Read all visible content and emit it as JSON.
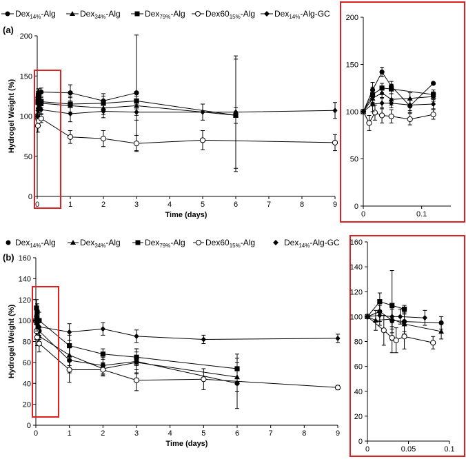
{
  "colors": {
    "highlight": "#e02020",
    "series": "#000000",
    "axis": "#000000"
  },
  "legend": [
    {
      "base": "Dex",
      "sub": "14%",
      "suffix": "-Alg",
      "marker": "circle-filled"
    },
    {
      "base": "Dex",
      "sub": "34%",
      "suffix": "-Alg",
      "marker": "triangle-filled"
    },
    {
      "base": "Dex",
      "sub": "79%",
      "suffix": "-Alg",
      "marker": "square-filled"
    },
    {
      "base": "Dex60",
      "sub": "15%",
      "suffix": "-Alg",
      "marker": "circle-open"
    },
    {
      "base": "Dex",
      "sub": "14%",
      "suffix": "-Alg-GC",
      "marker": "diamond-filled"
    }
  ],
  "chart_data": [
    {
      "id": "a-main",
      "panel_label": "(a)",
      "type": "line",
      "xlabel": "Time (days)",
      "ylabel": "Hydrogel Weight (%)",
      "xlim": [
        0,
        9
      ],
      "ylim": [
        0,
        200
      ],
      "xticks": [
        "0",
        "1",
        "2",
        "3",
        "4",
        "5",
        "6",
        "7",
        "8",
        "9"
      ],
      "yticks": [
        "0",
        "50",
        "100",
        "150",
        "200"
      ],
      "series": [
        {
          "name": "Dex14%-Alg",
          "marker": "circle-filled",
          "points": [
            [
              0,
              100,
              0
            ],
            [
              0.02,
              123,
              8
            ],
            [
              0.03,
              128,
              6
            ],
            [
              0.05,
              129,
              5
            ],
            [
              0.12,
              130,
              5
            ],
            [
              1,
              129,
              10
            ],
            [
              2,
              119,
              9
            ],
            [
              3,
              129,
              72
            ]
          ]
        },
        {
          "name": "Dex34%-Alg",
          "marker": "triangle-filled",
          "points": [
            [
              0,
              100,
              0
            ],
            [
              0.02,
              117,
              8
            ],
            [
              0.03,
              120,
              6
            ],
            [
              0.05,
              117,
              5
            ],
            [
              0.12,
              116,
              5
            ],
            [
              1,
              113,
              10
            ],
            [
              2,
              110,
              8
            ],
            [
              3,
              113,
              12
            ],
            [
              6,
              101,
              70
            ]
          ]
        },
        {
          "name": "Dex79%-Alg",
          "marker": "square-filled",
          "points": [
            [
              0,
              100,
              0
            ],
            [
              0.02,
              118,
              8
            ],
            [
              0.03,
              124,
              5
            ],
            [
              0.05,
              123,
              5
            ],
            [
              0.12,
              118,
              5
            ],
            [
              1,
              115,
              10
            ],
            [
              2,
              116,
              9
            ],
            [
              3,
              119,
              10
            ],
            [
              6,
              101,
              10
            ]
          ]
        },
        {
          "name": "Dex6015%-Alg",
          "marker": "circle-open",
          "points": [
            [
              0,
              100,
              0
            ],
            [
              0.02,
              88,
              8
            ],
            [
              0.03,
              96,
              6
            ],
            [
              0.05,
              94,
              6
            ],
            [
              0.12,
              97,
              5
            ],
            [
              1,
              74,
              8
            ],
            [
              2,
              72,
              10
            ],
            [
              3,
              66,
              10
            ],
            [
              5,
              70,
              12
            ],
            [
              9,
              67,
              10
            ]
          ]
        },
        {
          "name": "Dex14%-Alg-GC",
          "marker": "diamond-filled",
          "points": [
            [
              0,
              100,
              0
            ],
            [
              0.02,
              107,
              8
            ],
            [
              0.03,
              110,
              6
            ],
            [
              0.05,
              110,
              5
            ],
            [
              0.12,
              108,
              5
            ],
            [
              1,
              103,
              10
            ],
            [
              2,
              106,
              8
            ],
            [
              3,
              105,
              10
            ],
            [
              5,
              105,
              10
            ],
            [
              6,
              105,
              70
            ],
            [
              9,
              107,
              10
            ]
          ]
        }
      ]
    },
    {
      "id": "a-inset",
      "type": "line",
      "xlim": [
        0,
        0.15
      ],
      "ylim": [
        0,
        200
      ],
      "xticks": [
        "0",
        "0.1"
      ],
      "yticks": [
        "0",
        "50",
        "100",
        "150",
        "200"
      ],
      "series": [
        {
          "name": "Dex14%-Alg",
          "marker": "circle-filled",
          "points": [
            [
              0,
              100,
              0
            ],
            [
              0.016,
              123,
              8
            ],
            [
              0.032,
              142,
              5
            ],
            [
              0.048,
              127,
              5
            ],
            [
              0.08,
              106,
              7
            ],
            [
              0.12,
              130,
              0
            ]
          ]
        },
        {
          "name": "Dex34%-Alg",
          "marker": "triangle-filled",
          "points": [
            [
              0,
              100,
              0
            ],
            [
              0.016,
              114,
              8
            ],
            [
              0.032,
              120,
              6
            ],
            [
              0.048,
              113,
              6
            ],
            [
              0.08,
              114,
              6
            ],
            [
              0.12,
              116,
              5
            ]
          ]
        },
        {
          "name": "Dex79%-Alg",
          "marker": "square-filled",
          "points": [
            [
              0,
              100,
              0
            ],
            [
              0.016,
              118,
              8
            ],
            [
              0.032,
              125,
              5
            ],
            [
              0.048,
              124,
              5
            ],
            [
              0.12,
              118,
              5
            ]
          ]
        },
        {
          "name": "Dex6015%-Alg",
          "marker": "circle-open",
          "points": [
            [
              0,
              100,
              0
            ],
            [
              0.01,
              88,
              8
            ],
            [
              0.02,
              99,
              8
            ],
            [
              0.032,
              96,
              8
            ],
            [
              0.048,
              95,
              7
            ],
            [
              0.08,
              92,
              6
            ],
            [
              0.12,
              97,
              5
            ]
          ]
        },
        {
          "name": "Dex14%-Alg-GC",
          "marker": "diamond-filled",
          "points": [
            [
              0,
              100,
              0
            ],
            [
              0.016,
              108,
              8
            ],
            [
              0.032,
              109,
              6
            ],
            [
              0.048,
              109,
              5
            ],
            [
              0.08,
              107,
              6
            ],
            [
              0.12,
              108,
              5
            ]
          ]
        }
      ]
    },
    {
      "id": "b-main",
      "panel_label": "(b)",
      "type": "line",
      "xlabel": "Time (days)",
      "ylabel": "Hydrogel Weight (%)",
      "xlim": [
        0,
        9
      ],
      "ylim": [
        0,
        160
      ],
      "xticks": [
        "0",
        "1",
        "2",
        "3",
        "4",
        "5",
        "6",
        "7",
        "8",
        "9"
      ],
      "yticks": [
        "0",
        "20",
        "40",
        "60",
        "80",
        "100",
        "120",
        "140",
        "160"
      ],
      "series": [
        {
          "name": "Dex14%-Alg",
          "marker": "circle-filled",
          "points": [
            [
              0,
              100,
              0
            ],
            [
              0.02,
              104,
              8
            ],
            [
              0.04,
              98,
              8
            ],
            [
              0.1,
              90,
              8
            ],
            [
              1,
              62,
              12
            ],
            [
              2,
              57,
              8
            ],
            [
              3,
              61,
              12
            ],
            [
              6,
              40,
              24
            ]
          ]
        },
        {
          "name": "Dex34%-Alg",
          "marker": "triangle-filled",
          "points": [
            [
              0,
              100,
              0
            ],
            [
              0.02,
              98,
              8
            ],
            [
              0.04,
              92,
              8
            ],
            [
              0.1,
              85,
              8
            ],
            [
              1,
              67,
              10
            ],
            [
              2,
              54,
              6
            ],
            [
              3,
              60,
              10
            ],
            [
              6,
              46,
              14
            ]
          ]
        },
        {
          "name": "Dex79%-Alg",
          "marker": "square-filled",
          "points": [
            [
              0,
              100,
              0
            ],
            [
              0.02,
              112,
              8
            ],
            [
              0.04,
              108,
              8
            ],
            [
              0.1,
              100,
              8
            ],
            [
              1,
              76,
              10
            ],
            [
              2,
              68,
              5
            ],
            [
              3,
              65,
              8
            ],
            [
              6,
              54,
              14
            ]
          ]
        },
        {
          "name": "Dex6015%-Alg",
          "marker": "circle-open",
          "points": [
            [
              0,
              100,
              0
            ],
            [
              0.02,
              90,
              8
            ],
            [
              0.04,
              84,
              8
            ],
            [
              0.1,
              78,
              8
            ],
            [
              1,
              53,
              12
            ],
            [
              2,
              53,
              6
            ],
            [
              3,
              43,
              10
            ],
            [
              5,
              44,
              10
            ],
            [
              9,
              36,
              2
            ]
          ]
        },
        {
          "name": "Dex14%-Alg-GC",
          "marker": "diamond-filled",
          "points": [
            [
              0,
              100,
              0
            ],
            [
              0.02,
              100,
              8
            ],
            [
              0.04,
              98,
              8
            ],
            [
              0.1,
              94,
              8
            ],
            [
              1,
              89,
              8
            ],
            [
              2,
              92,
              6
            ],
            [
              3,
              85,
              6
            ],
            [
              5,
              82,
              4
            ],
            [
              9,
              83,
              4
            ]
          ]
        }
      ]
    },
    {
      "id": "b-inset",
      "type": "line",
      "xlim": [
        0,
        0.1
      ],
      "ylim": [
        0,
        160
      ],
      "xticks": [
        "0",
        "0.05",
        "0.1"
      ],
      "yticks": [
        "0",
        "20",
        "40",
        "60",
        "80",
        "100",
        "120",
        "140",
        "160"
      ],
      "series": [
        {
          "name": "Dex14%-Alg",
          "marker": "circle-filled",
          "points": [
            [
              0,
              100,
              0
            ],
            [
              0.015,
              104,
              8
            ],
            [
              0.03,
              97,
              10
            ],
            [
              0.045,
              96,
              8
            ],
            [
              0.09,
              95,
              5
            ]
          ]
        },
        {
          "name": "Dex34%-Alg",
          "marker": "triangle-filled",
          "points": [
            [
              0,
              100,
              0
            ],
            [
              0.01,
              97,
              8
            ],
            [
              0.03,
              98,
              8
            ],
            [
              0.045,
              94,
              8
            ],
            [
              0.09,
              88,
              6
            ]
          ]
        },
        {
          "name": "Dex79%-Alg",
          "marker": "square-filled",
          "points": [
            [
              0,
              100,
              0
            ],
            [
              0.015,
              112,
              7
            ],
            [
              0.03,
              109,
              28
            ],
            [
              0.045,
              106,
              3
            ]
          ]
        },
        {
          "name": "Dex6015%-Alg",
          "marker": "circle-open",
          "points": [
            [
              0,
              100,
              0
            ],
            [
              0.02,
              89,
              12
            ],
            [
              0.03,
              83,
              12
            ],
            [
              0.035,
              81,
              10
            ],
            [
              0.045,
              84,
              10
            ],
            [
              0.08,
              79,
              5
            ]
          ]
        },
        {
          "name": "Dex14%-Alg-GC",
          "marker": "diamond-filled",
          "points": [
            [
              0,
              100,
              0
            ],
            [
              0.015,
              101,
              8
            ],
            [
              0.03,
              100,
              8
            ],
            [
              0.04,
              100,
              6
            ],
            [
              0.07,
              99,
              6
            ]
          ]
        }
      ]
    }
  ]
}
